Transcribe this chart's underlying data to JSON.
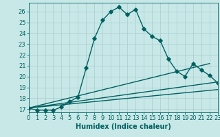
{
  "xlabel": "Humidex (Indice chaleur)",
  "background_color": "#c8e8e8",
  "grid_color": "#a8cccc",
  "line_color": "#006060",
  "xlim": [
    0,
    23
  ],
  "ylim": [
    16.7,
    26.8
  ],
  "yticks": [
    17,
    18,
    19,
    20,
    21,
    22,
    23,
    24,
    25,
    26
  ],
  "xticks": [
    0,
    1,
    2,
    3,
    4,
    5,
    6,
    7,
    8,
    9,
    10,
    11,
    12,
    13,
    14,
    15,
    16,
    17,
    18,
    19,
    20,
    21,
    22,
    23
  ],
  "curve1_x": [
    0,
    1,
    2,
    3,
    4,
    5,
    6,
    7,
    8,
    9,
    10,
    11,
    12,
    13,
    14,
    15,
    16,
    17,
    18,
    19,
    20,
    21,
    22,
    23
  ],
  "curve1_y": [
    17.1,
    16.9,
    16.9,
    16.9,
    17.2,
    17.7,
    18.1,
    20.8,
    23.5,
    25.2,
    26.0,
    26.4,
    25.7,
    26.2,
    24.4,
    23.7,
    23.3,
    21.6,
    20.5,
    20.0,
    21.2,
    20.6,
    20.1,
    19.4
  ],
  "curve2_x": [
    0,
    22
  ],
  "curve2_y": [
    17.1,
    21.2
  ],
  "curve3_x": [
    0,
    23
  ],
  "curve3_y": [
    17.1,
    19.5
  ],
  "curve4_x": [
    0,
    23
  ],
  "curve4_y": [
    17.1,
    18.8
  ],
  "marker": "D",
  "markersize": 2.8,
  "linewidth": 1.0,
  "fontsize_ticks": 6.0,
  "fontsize_label": 7.0
}
